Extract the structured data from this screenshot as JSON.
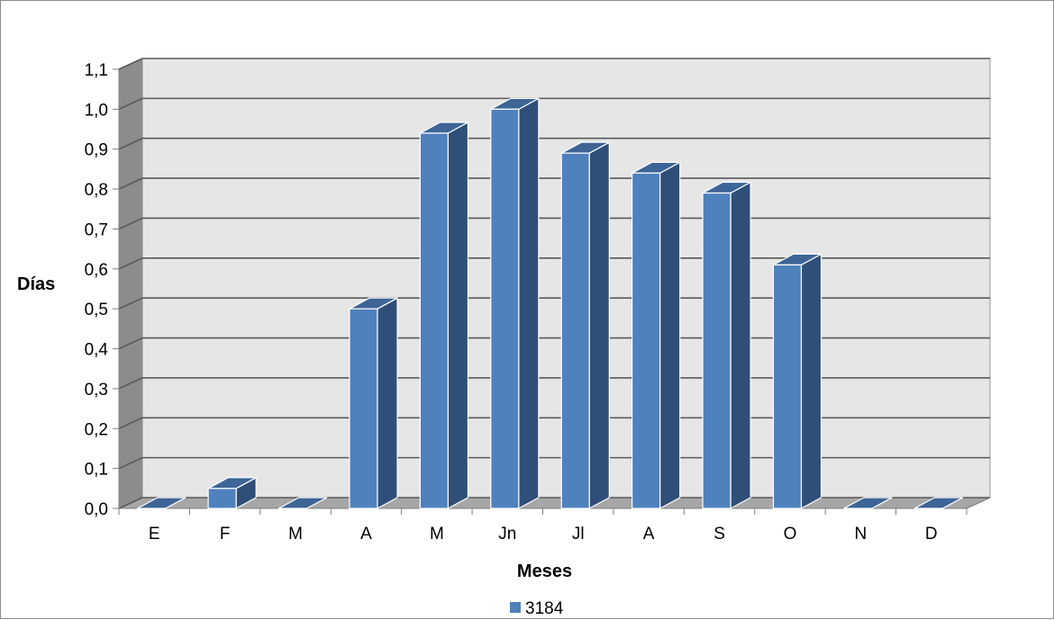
{
  "chart_data": {
    "type": "bar",
    "title": "",
    "xlabel": "Meses",
    "ylabel": "Días",
    "categories": [
      "E",
      "F",
      "M",
      "A",
      "M",
      "Jn",
      "Jl",
      "A",
      "S",
      "O",
      "N",
      "D"
    ],
    "series": [
      {
        "name": "3184",
        "values": [
          0.0,
          0.05,
          0.0,
          0.5,
          0.94,
          1.0,
          0.89,
          0.84,
          0.79,
          0.61,
          0.0,
          0.0
        ],
        "color": "#4f81bd"
      }
    ],
    "ylim": [
      0.0,
      1.1
    ],
    "yticks": [
      "0,0",
      "0,1",
      "0,2",
      "0,3",
      "0,4",
      "0,5",
      "0,6",
      "0,7",
      "0,8",
      "0,9",
      "1,0",
      "1,1"
    ],
    "grid": true,
    "style": "3d-column",
    "legend_position": "bottom"
  }
}
